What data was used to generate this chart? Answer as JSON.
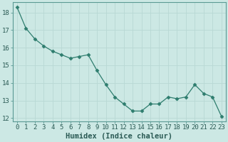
{
  "x": [
    0,
    1,
    2,
    3,
    4,
    5,
    6,
    7,
    8,
    9,
    10,
    11,
    12,
    13,
    14,
    15,
    16,
    17,
    18,
    19,
    20,
    21,
    22,
    23
  ],
  "y": [
    18.3,
    17.1,
    16.5,
    16.1,
    15.8,
    15.6,
    15.4,
    15.5,
    15.6,
    14.7,
    13.9,
    13.2,
    12.8,
    12.4,
    12.4,
    12.8,
    12.8,
    13.2,
    13.1,
    13.2,
    13.9,
    13.4,
    13.2,
    12.1
  ],
  "line_color": "#2e7d6e",
  "marker": "D",
  "marker_size": 2.5,
  "bg_color": "#cce8e4",
  "grid_color_major": "#b8d8d4",
  "grid_color_minor": "#d4ecea",
  "xlabel": "Humidex (Indice chaleur)",
  "xlim": [
    -0.5,
    23.5
  ],
  "ylim": [
    11.8,
    18.6
  ],
  "yticks": [
    12,
    13,
    14,
    15,
    16,
    17,
    18
  ],
  "xticks": [
    0,
    1,
    2,
    3,
    4,
    5,
    6,
    7,
    8,
    9,
    10,
    11,
    12,
    13,
    14,
    15,
    16,
    17,
    18,
    19,
    20,
    21,
    22,
    23
  ],
  "tick_label_fontsize": 6.5,
  "xlabel_fontsize": 7.5,
  "font_family": "monospace"
}
